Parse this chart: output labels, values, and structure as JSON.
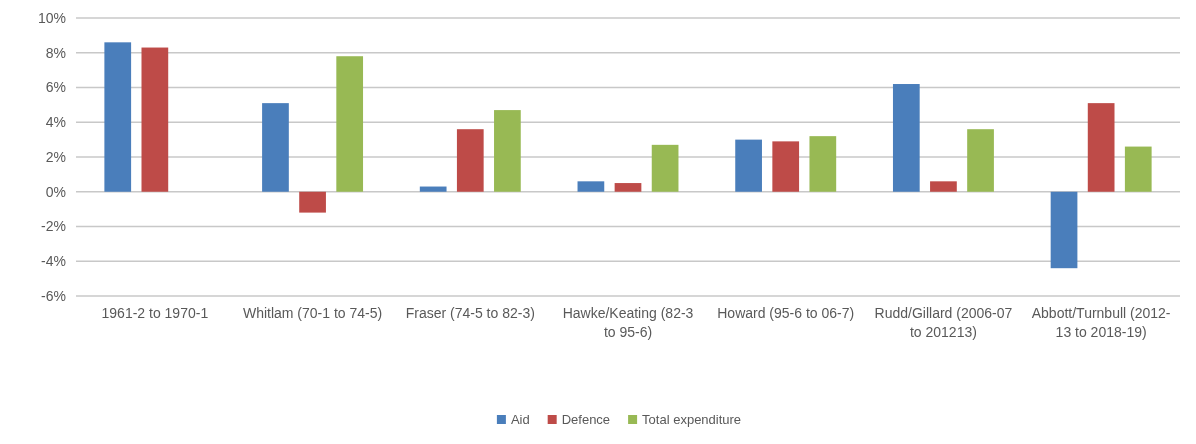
{
  "chart_data": {
    "type": "bar",
    "categories": [
      "1961-2 to 1970-1",
      "Whitlam (70-1 to 74-5)",
      "Fraser (74-5 to 82-3)",
      "Hawke/Keating (82-3 to 95-6)",
      "Howard (95-6 to 06-7)",
      "Rudd/Gillard (2006-07 to 201213)",
      "Abbott/Turnbull (2012-13 to 2018-19)"
    ],
    "series": [
      {
        "name": "Aid",
        "color": "#4a7ebb",
        "values": [
          8.6,
          5.1,
          0.3,
          0.6,
          3.0,
          6.2,
          -4.4
        ]
      },
      {
        "name": "Defence",
        "color": "#be4b48",
        "values": [
          8.3,
          -1.2,
          3.6,
          0.5,
          2.9,
          0.6,
          5.1
        ]
      },
      {
        "name": "Total expenditure",
        "color": "#98b954",
        "values": [
          null,
          7.8,
          4.7,
          2.7,
          3.2,
          3.6,
          2.6
        ]
      }
    ],
    "ylim": [
      -6,
      10
    ],
    "yticks": [
      {
        "value": -6,
        "label": "-6%"
      },
      {
        "value": -4,
        "label": "-4%"
      },
      {
        "value": -2,
        "label": "-2%"
      },
      {
        "value": 0,
        "label": "0%"
      },
      {
        "value": 2,
        "label": "2%"
      },
      {
        "value": 4,
        "label": "4%"
      },
      {
        "value": 6,
        "label": "6%"
      },
      {
        "value": 8,
        "label": "8%"
      },
      {
        "value": 10,
        "label": "10%"
      }
    ],
    "grid": "y",
    "legend": "bottom"
  }
}
